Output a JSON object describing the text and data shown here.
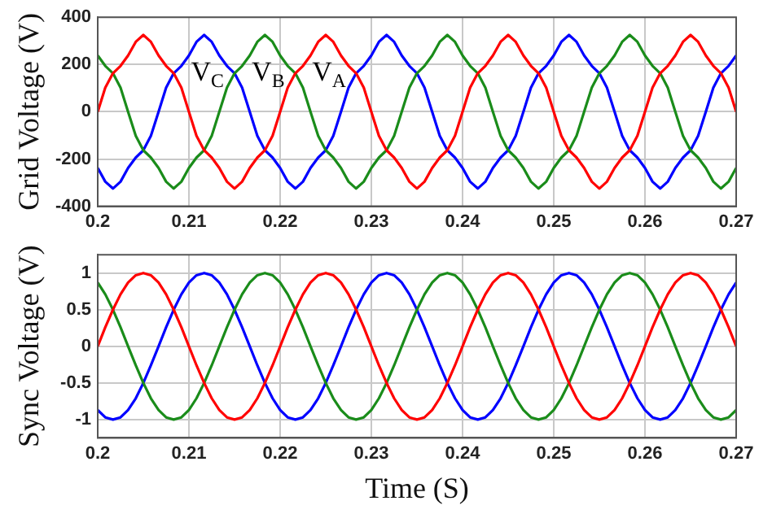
{
  "chart_data": [
    {
      "type": "line",
      "ylabel": "Grid Voltage (V)",
      "xlim": [
        0.2,
        0.27
      ],
      "xticks": [
        0.2,
        0.21,
        0.22,
        0.23,
        0.24,
        0.25,
        0.26,
        0.27
      ],
      "ylim": [
        -400,
        400
      ],
      "yticks": [
        -400,
        -200,
        0,
        200,
        400
      ],
      "grid": true,
      "legend": false,
      "marker": "none",
      "line_style": "solid",
      "x": [
        0.2,
        0.20083,
        0.20167,
        0.2025,
        0.20333,
        0.20417,
        0.205,
        0.20583,
        0.20667,
        0.2075,
        0.20833,
        0.20917,
        0.21,
        0.21083,
        0.21167,
        0.2125,
        0.21333,
        0.21417,
        0.215,
        0.21583,
        0.21667,
        0.2175,
        0.21833,
        0.21917,
        0.22,
        0.22083,
        0.22167,
        0.2225,
        0.22333,
        0.22417,
        0.225,
        0.22583,
        0.22667,
        0.2275,
        0.22833,
        0.22917,
        0.23,
        0.23083,
        0.23167,
        0.2325,
        0.23333,
        0.23417,
        0.235,
        0.23583,
        0.23667,
        0.2375,
        0.23833,
        0.23917,
        0.24,
        0.24083,
        0.24167,
        0.2425,
        0.24333,
        0.24417,
        0.245,
        0.24583,
        0.24667,
        0.2475,
        0.24833,
        0.24917,
        0.25,
        0.25083,
        0.25167,
        0.2525,
        0.25333,
        0.25417,
        0.255,
        0.25583,
        0.25667,
        0.2575,
        0.25833,
        0.25917,
        0.26,
        0.26083,
        0.26167,
        0.2625,
        0.26333,
        0.26417,
        0.265,
        0.26583,
        0.26667,
        0.2675,
        0.26833,
        0.26917,
        0.27
      ],
      "series": [
        {
          "name": "V$_{A}$",
          "color": "#ff0000",
          "values": [
            0,
            102,
            163,
            194,
            238,
            296,
            325,
            296,
            238,
            194,
            163,
            102,
            0,
            -102,
            -163,
            -194,
            -238,
            -296,
            -325,
            -296,
            -238,
            -194,
            -163,
            -102,
            0,
            102,
            163,
            194,
            238,
            296,
            325,
            296,
            238,
            194,
            163,
            102,
            0,
            -102,
            -163,
            -194,
            -238,
            -296,
            -325,
            -296,
            -238,
            -194,
            -163,
            -102,
            0,
            102,
            163,
            194,
            238,
            296,
            325,
            296,
            238,
            194,
            163,
            102,
            0,
            -102,
            -163,
            -194,
            -238,
            -296,
            -325,
            -296,
            -238,
            -194,
            -163,
            -102,
            0,
            102,
            163,
            194,
            238,
            296,
            325,
            296,
            238,
            194,
            163,
            102,
            0
          ]
        },
        {
          "name": "V$_{B}$",
          "color": "#1a8c1a",
          "values": [
            238,
            194,
            163,
            102,
            0,
            -102,
            -163,
            -194,
            -238,
            -296,
            -325,
            -296,
            -238,
            -194,
            -163,
            -102,
            0,
            102,
            163,
            194,
            238,
            296,
            325,
            296,
            238,
            194,
            163,
            102,
            0,
            -102,
            -163,
            -194,
            -238,
            -296,
            -325,
            -296,
            -238,
            -194,
            -163,
            -102,
            0,
            102,
            163,
            194,
            238,
            296,
            325,
            296,
            238,
            194,
            163,
            102,
            0,
            -102,
            -163,
            -194,
            -238,
            -296,
            -325,
            -296,
            -238,
            -194,
            -163,
            -102,
            0,
            102,
            163,
            194,
            238,
            296,
            325,
            296,
            238,
            194,
            163,
            102,
            0,
            -102,
            -163,
            -194,
            -238,
            -296,
            -325,
            -296,
            -238
          ]
        },
        {
          "name": "V$_{C}$",
          "color": "#0000ff",
          "values": [
            -238,
            -296,
            -325,
            -296,
            -238,
            -194,
            -163,
            -102,
            0,
            102,
            163,
            194,
            238,
            296,
            325,
            296,
            238,
            194,
            163,
            102,
            0,
            -102,
            -163,
            -194,
            -238,
            -296,
            -325,
            -296,
            -238,
            -194,
            -163,
            -102,
            0,
            102,
            163,
            194,
            238,
            296,
            325,
            296,
            238,
            194,
            163,
            102,
            0,
            -102,
            -163,
            -194,
            -238,
            -296,
            -325,
            -296,
            -238,
            -194,
            -163,
            -102,
            0,
            102,
            163,
            194,
            238,
            296,
            325,
            296,
            238,
            194,
            163,
            102,
            0,
            -102,
            -163,
            -194,
            -238,
            -296,
            -325,
            -296,
            -238,
            -194,
            -163,
            -102,
            0,
            102,
            163,
            194,
            238
          ]
        }
      ]
    },
    {
      "type": "line",
      "ylabel": "Sync Voltage (V)",
      "xlabel": "Time (S)",
      "xlim": [
        0.2,
        0.27
      ],
      "xticks": [
        0.2,
        0.21,
        0.22,
        0.23,
        0.24,
        0.25,
        0.26,
        0.27
      ],
      "ylim": [
        -1.25,
        1.25
      ],
      "yticks": [
        -1,
        -0.5,
        0,
        0.5,
        1
      ],
      "grid": true,
      "legend": false,
      "marker": "none",
      "line_style": "solid",
      "x": [
        0.2,
        0.20083,
        0.20167,
        0.2025,
        0.20333,
        0.20417,
        0.205,
        0.20583,
        0.20667,
        0.2075,
        0.20833,
        0.20917,
        0.21,
        0.21083,
        0.21167,
        0.2125,
        0.21333,
        0.21417,
        0.215,
        0.21583,
        0.21667,
        0.2175,
        0.21833,
        0.21917,
        0.22,
        0.22083,
        0.22167,
        0.2225,
        0.22333,
        0.22417,
        0.225,
        0.22583,
        0.22667,
        0.2275,
        0.22833,
        0.22917,
        0.23,
        0.23083,
        0.23167,
        0.2325,
        0.23333,
        0.23417,
        0.235,
        0.23583,
        0.23667,
        0.2375,
        0.23833,
        0.23917,
        0.24,
        0.24083,
        0.24167,
        0.2425,
        0.24333,
        0.24417,
        0.245,
        0.24583,
        0.24667,
        0.2475,
        0.24833,
        0.24917,
        0.25,
        0.25083,
        0.25167,
        0.2525,
        0.25333,
        0.25417,
        0.255,
        0.25583,
        0.25667,
        0.2575,
        0.25833,
        0.25917,
        0.26,
        0.26083,
        0.26167,
        0.2625,
        0.26333,
        0.26417,
        0.265,
        0.26583,
        0.26667,
        0.2675,
        0.26833,
        0.26917,
        0.27
      ],
      "series": [
        {
          "color": "#ff0000",
          "values": [
            0,
            0.26,
            0.5,
            0.71,
            0.87,
            0.97,
            1,
            0.97,
            0.87,
            0.71,
            0.5,
            0.26,
            0,
            -0.26,
            -0.5,
            -0.71,
            -0.87,
            -0.97,
            -1,
            -0.97,
            -0.87,
            -0.71,
            -0.5,
            -0.26,
            0,
            0.26,
            0.5,
            0.71,
            0.87,
            0.97,
            1,
            0.97,
            0.87,
            0.71,
            0.5,
            0.26,
            0,
            -0.26,
            -0.5,
            -0.71,
            -0.87,
            -0.97,
            -1,
            -0.97,
            -0.87,
            -0.71,
            -0.5,
            -0.26,
            0,
            0.26,
            0.5,
            0.71,
            0.87,
            0.97,
            1,
            0.97,
            0.87,
            0.71,
            0.5,
            0.26,
            0,
            -0.26,
            -0.5,
            -0.71,
            -0.87,
            -0.97,
            -1,
            -0.97,
            -0.87,
            -0.71,
            -0.5,
            -0.26,
            0,
            0.26,
            0.5,
            0.71,
            0.87,
            0.97,
            1,
            0.97,
            0.87,
            0.71,
            0.5,
            0.26,
            0
          ]
        },
        {
          "color": "#1a8c1a",
          "values": [
            0.87,
            0.71,
            0.5,
            0.26,
            0,
            -0.26,
            -0.5,
            -0.71,
            -0.87,
            -0.97,
            -1,
            -0.97,
            -0.87,
            -0.71,
            -0.5,
            -0.26,
            0,
            0.26,
            0.5,
            0.71,
            0.87,
            0.97,
            1,
            0.97,
            0.87,
            0.71,
            0.5,
            0.26,
            0,
            -0.26,
            -0.5,
            -0.71,
            -0.87,
            -0.97,
            -1,
            -0.97,
            -0.87,
            -0.71,
            -0.5,
            -0.26,
            0,
            0.26,
            0.5,
            0.71,
            0.87,
            0.97,
            1,
            0.97,
            0.87,
            0.71,
            0.5,
            0.26,
            0,
            -0.26,
            -0.5,
            -0.71,
            -0.87,
            -0.97,
            -1,
            -0.97,
            -0.87,
            -0.71,
            -0.5,
            -0.26,
            0,
            0.26,
            0.5,
            0.71,
            0.87,
            0.97,
            1,
            0.97,
            0.87,
            0.71,
            0.5,
            0.26,
            0,
            -0.26,
            -0.5,
            -0.71,
            -0.87,
            -0.97,
            -1,
            -0.97,
            -0.87
          ]
        },
        {
          "color": "#0000ff",
          "values": [
            -0.87,
            -0.97,
            -1,
            -0.97,
            -0.87,
            -0.71,
            -0.5,
            -0.26,
            0,
            0.26,
            0.5,
            0.71,
            0.87,
            0.97,
            1,
            0.97,
            0.87,
            0.71,
            0.5,
            0.26,
            0,
            -0.26,
            -0.5,
            -0.71,
            -0.87,
            -0.97,
            -1,
            -0.97,
            -0.87,
            -0.71,
            -0.5,
            -0.26,
            0,
            0.26,
            0.5,
            0.71,
            0.87,
            0.97,
            1,
            0.97,
            0.87,
            0.71,
            0.5,
            0.26,
            0,
            -0.26,
            -0.5,
            -0.71,
            -0.87,
            -0.97,
            -1,
            -0.97,
            -0.87,
            -0.71,
            -0.5,
            -0.26,
            0,
            0.26,
            0.5,
            0.71,
            0.87,
            0.97,
            1,
            0.97,
            0.87,
            0.71,
            0.5,
            0.26,
            0,
            -0.26,
            -0.5,
            -0.71,
            -0.87,
            -0.97,
            -1,
            -0.97,
            -0.87,
            -0.71,
            -0.5,
            -0.26,
            0,
            0.26,
            0.5,
            0.71,
            0.87
          ]
        }
      ]
    }
  ]
}
